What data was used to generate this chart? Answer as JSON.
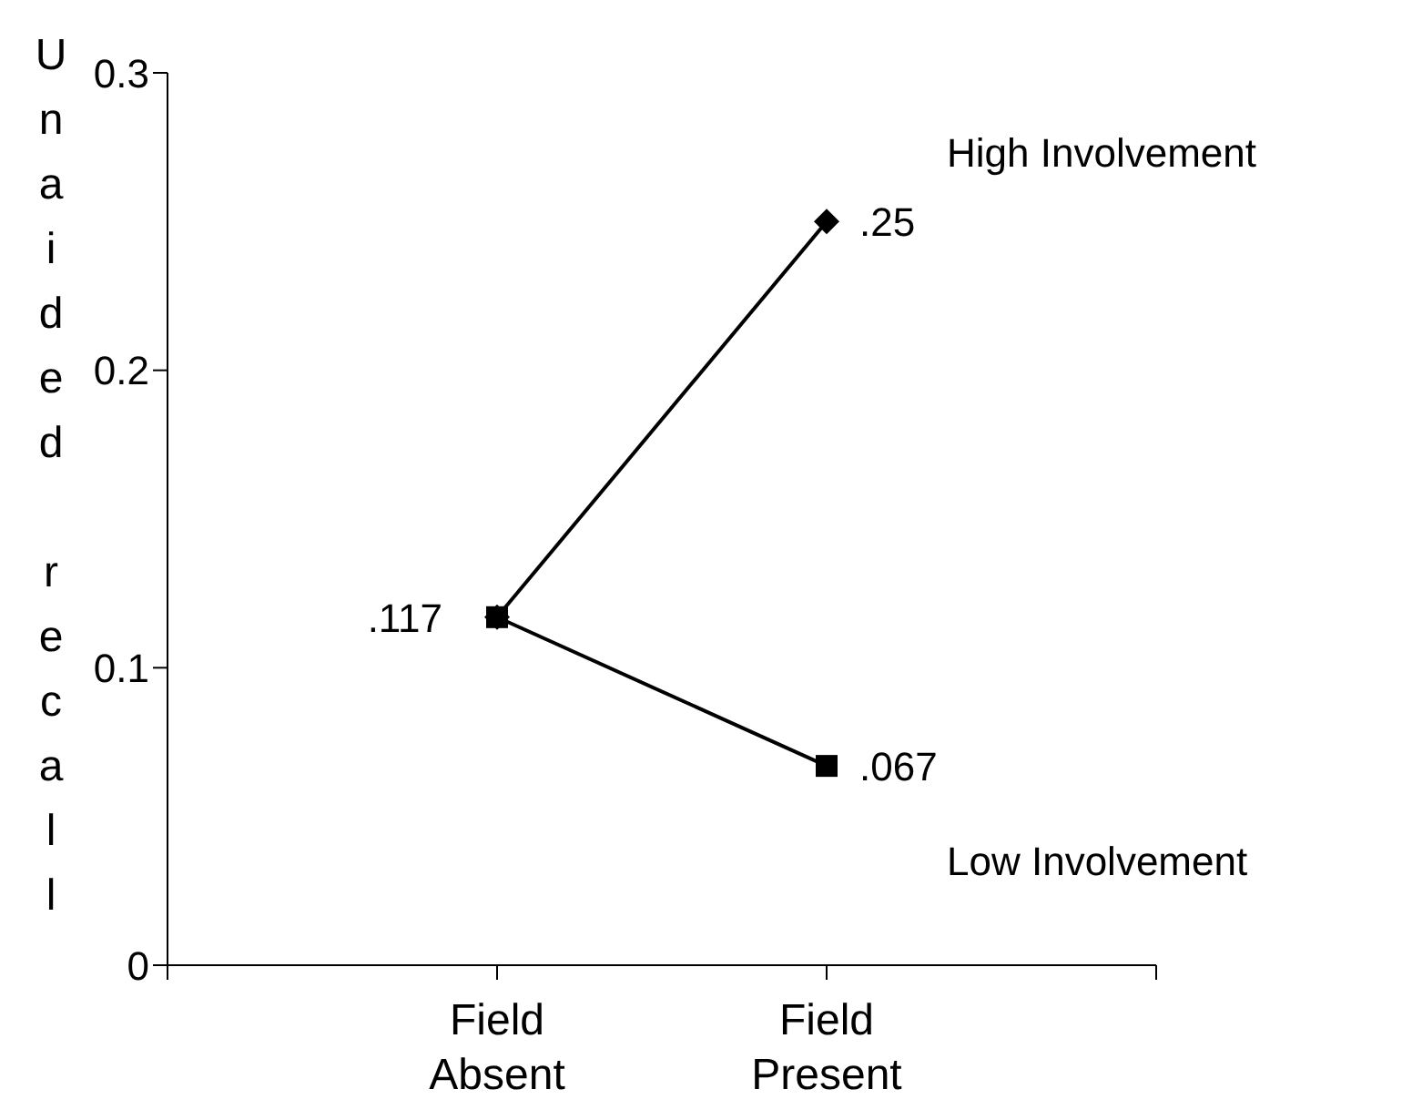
{
  "chart_data": {
    "type": "line",
    "ylabel": "Unaided recall",
    "categories": [
      "Field Absent",
      "Field Present"
    ],
    "series": [
      {
        "name": "High Involvement",
        "color": "#000000",
        "marker": "diamond",
        "values": [
          0.117,
          0.25
        ],
        "value_labels": [
          ".117",
          ".25"
        ]
      },
      {
        "name": "Low Involvement",
        "color": "#000000",
        "marker": "square",
        "values": [
          0.117,
          0.067
        ],
        "value_labels": [
          null,
          ".067"
        ]
      }
    ],
    "ylim": [
      0,
      0.3
    ],
    "yticks": [
      0,
      0.1,
      0.2,
      0.3
    ],
    "line_style": "solid"
  }
}
